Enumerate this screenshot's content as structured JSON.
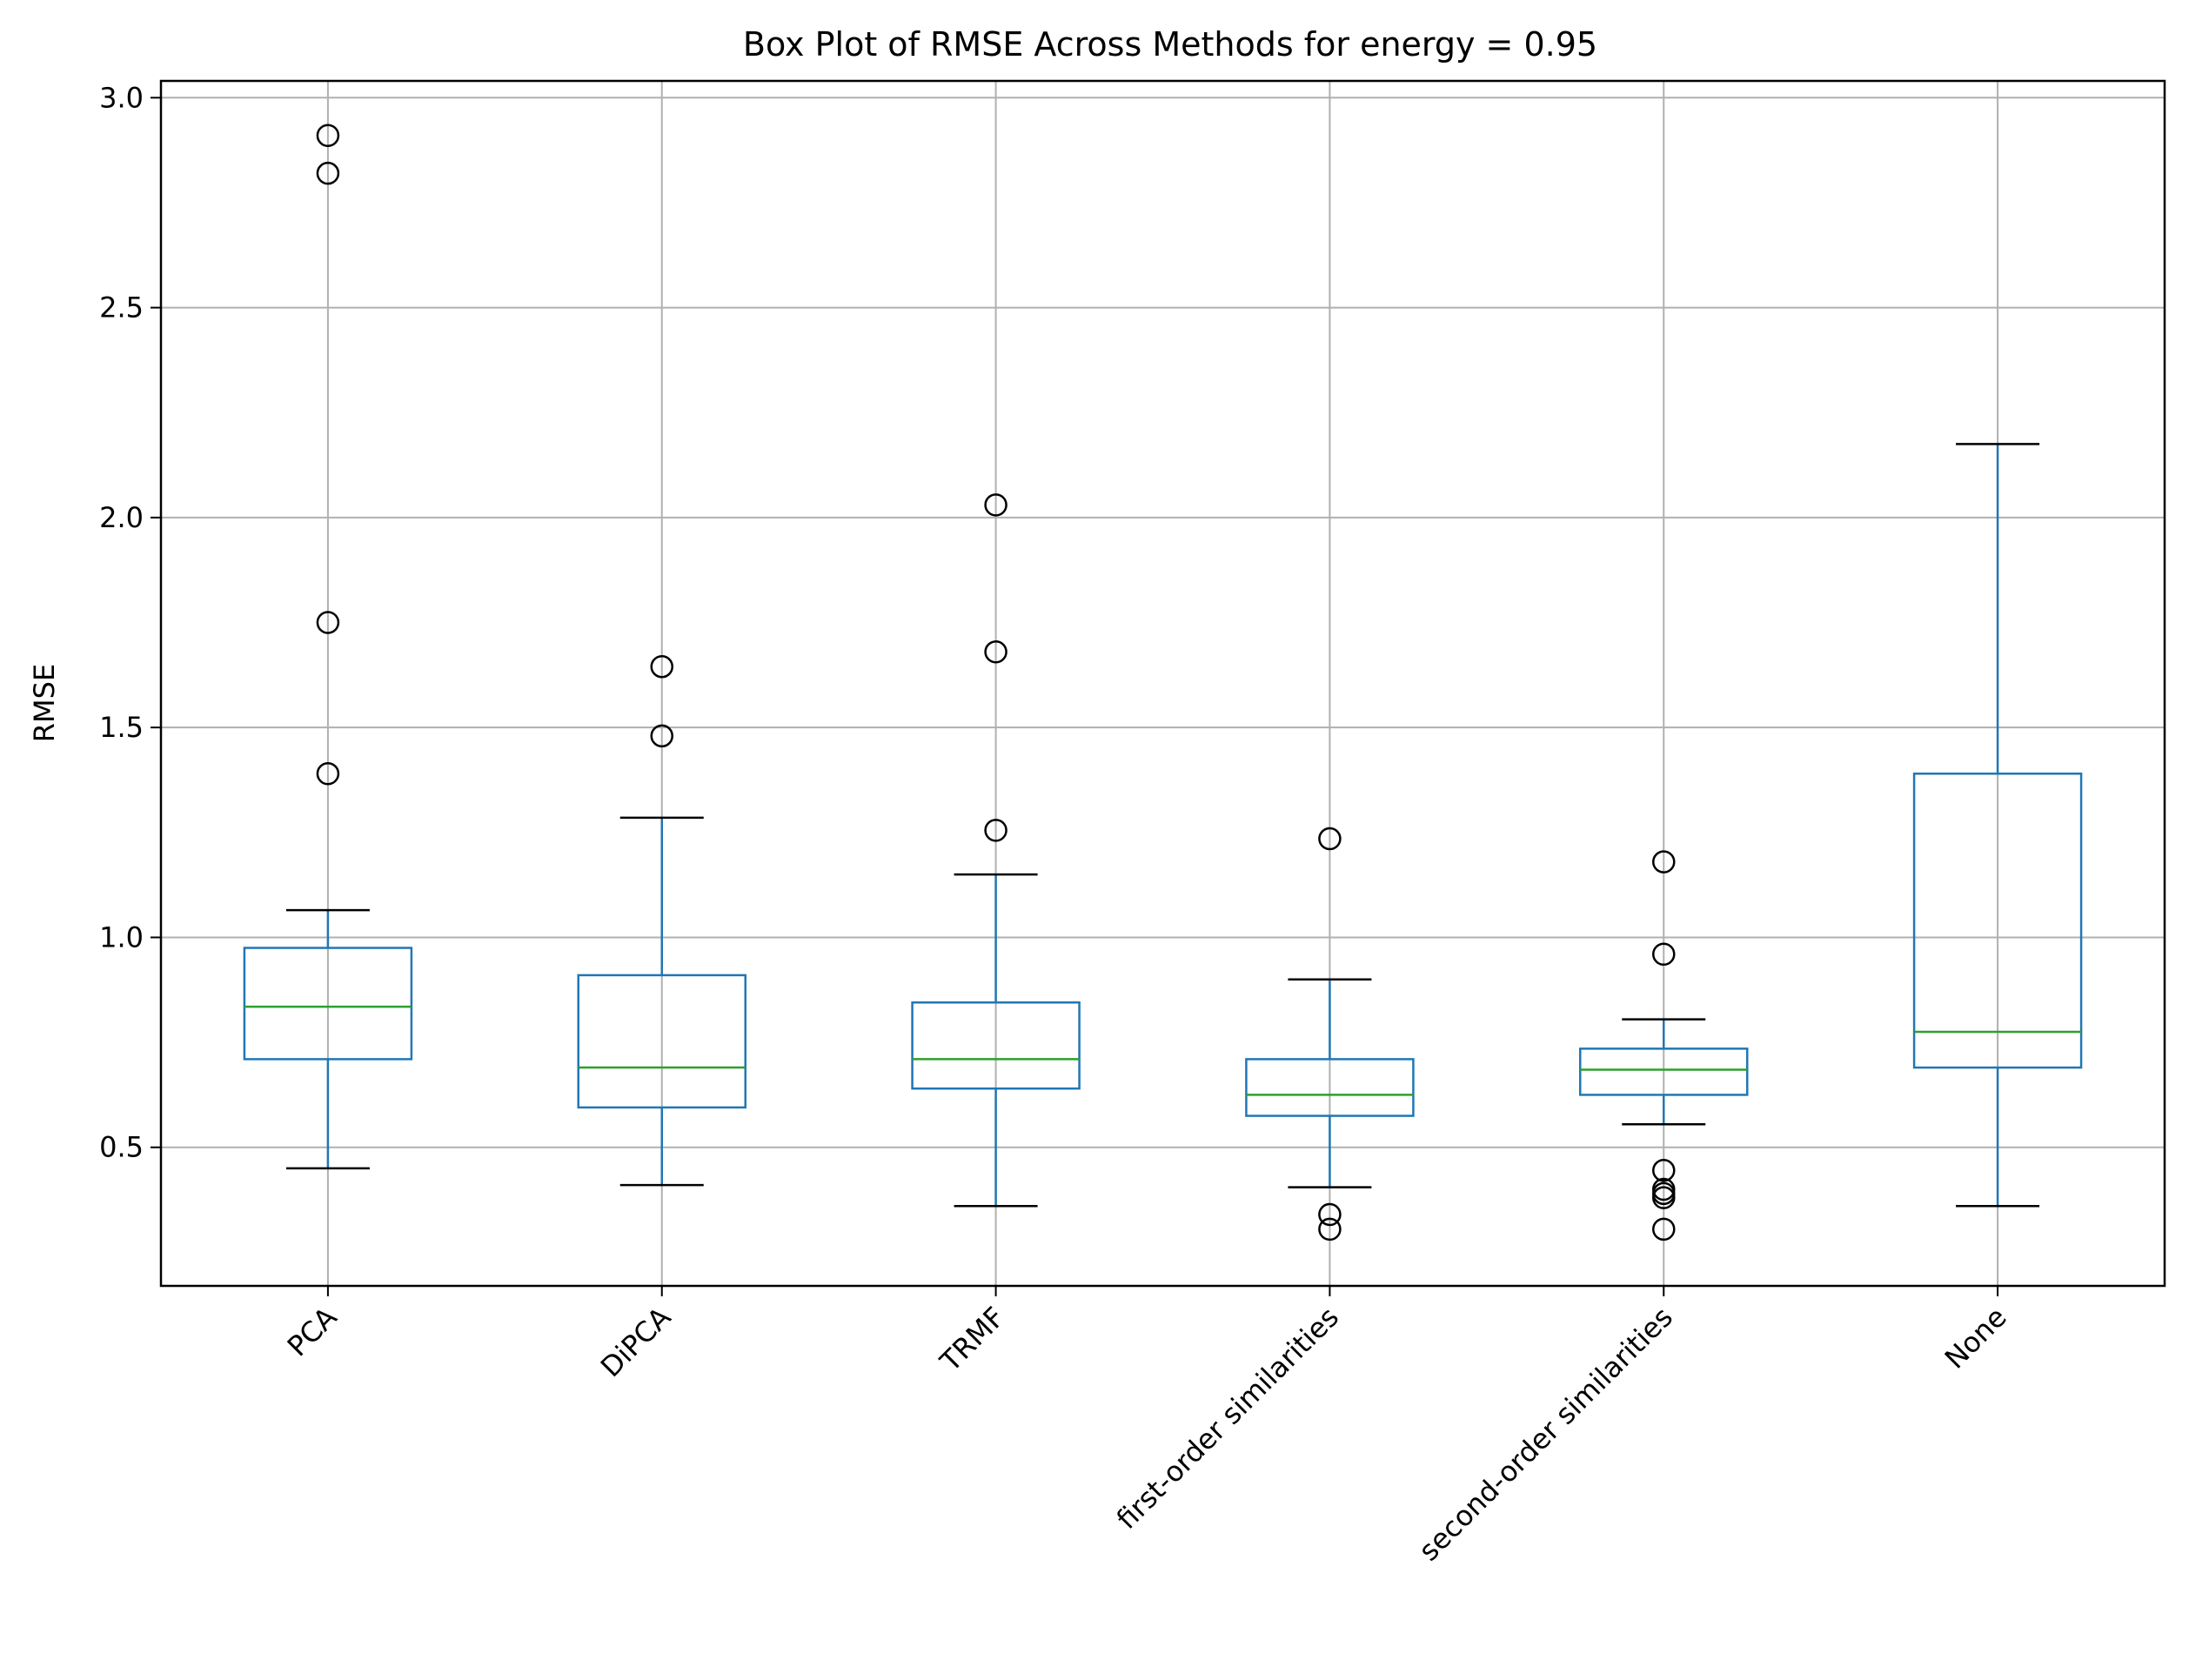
{
  "chart_data": {
    "type": "box",
    "title": "Box Plot of RMSE Across Methods for energy = 0.95",
    "xlabel": "",
    "ylabel": "RMSE",
    "ylim": [
      0.17,
      3.04
    ],
    "yticks": [
      0.5,
      1.0,
      1.5,
      2.0,
      2.5,
      3.0
    ],
    "ytick_labels": [
      "0.5",
      "1.0",
      "1.5",
      "2.0",
      "2.5",
      "3.0"
    ],
    "grid": true,
    "categories": [
      "PCA",
      "DiPCA",
      "TRMF",
      "first-order similarities",
      "second-order similarities",
      "None"
    ],
    "boxes": [
      {
        "label": "PCA",
        "whisker_low": 0.45,
        "q1": 0.71,
        "median": 0.835,
        "q3": 0.975,
        "whisker_high": 1.065,
        "outliers": [
          1.39,
          1.75,
          2.82,
          2.91
        ]
      },
      {
        "label": "DiPCA",
        "whisker_low": 0.41,
        "q1": 0.595,
        "median": 0.69,
        "q3": 0.91,
        "whisker_high": 1.285,
        "outliers": [
          1.48,
          1.645
        ]
      },
      {
        "label": "TRMF",
        "whisker_low": 0.36,
        "q1": 0.64,
        "median": 0.71,
        "q3": 0.845,
        "whisker_high": 1.15,
        "outliers": [
          1.255,
          1.68,
          2.03
        ]
      },
      {
        "label": "first-order similarities",
        "whisker_low": 0.405,
        "q1": 0.575,
        "median": 0.625,
        "q3": 0.71,
        "whisker_high": 0.9,
        "outliers": [
          0.305,
          0.34,
          1.235
        ]
      },
      {
        "label": "second-order similarities",
        "whisker_low": 0.555,
        "q1": 0.625,
        "median": 0.685,
        "q3": 0.735,
        "whisker_high": 0.805,
        "outliers": [
          0.305,
          0.38,
          0.39,
          0.4,
          0.445,
          0.96,
          1.18
        ]
      },
      {
        "label": "None",
        "whisker_low": 0.36,
        "q1": 0.69,
        "median": 0.775,
        "q3": 1.39,
        "whisker_high": 2.175,
        "outliers": []
      }
    ],
    "colors": {
      "box": "#1f77b4",
      "median": "#2ca02c",
      "cap": "#000000",
      "outlier": "#000000",
      "grid": "#b0b0b0"
    }
  }
}
